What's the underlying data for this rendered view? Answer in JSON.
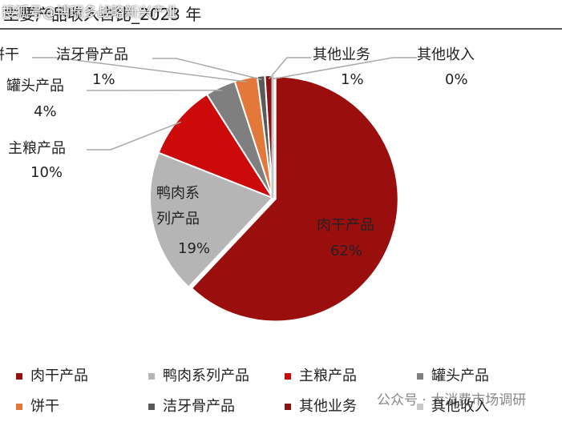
{
  "chart_data": {
    "type": "pie",
    "title": "主要产品收入占比_2023 年",
    "categories": [
      "肉干产品",
      "鸭肉系列产品",
      "主粮产品",
      "罐头产品",
      "饼干",
      "洁牙骨产品",
      "其他业务",
      "其他收入"
    ],
    "values": [
      62,
      19,
      10,
      4,
      3,
      1,
      1,
      0
    ],
    "value_labels": [
      "62%",
      "19%",
      "10%",
      "4%",
      null,
      "1%",
      "1%",
      "0%"
    ],
    "colors": [
      "#9b0e0e",
      "#b5b5b5",
      "#cc0a0a",
      "#7f7f7f",
      "#e2783a",
      "#5a5a5a",
      "#8a1212",
      "#c8c8c8"
    ],
    "legend": "bottom"
  },
  "watermarks": [
    "搜狐号@博瑞多战略新兴产业",
    "公众号 · 大消费市场调研"
  ]
}
